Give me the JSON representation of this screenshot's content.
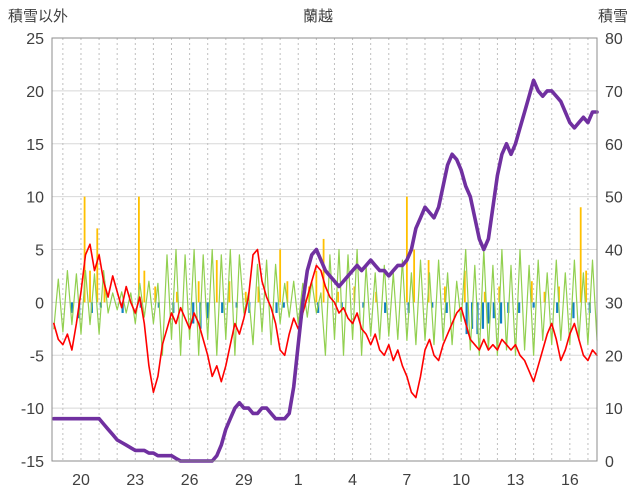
{
  "chart_data": {
    "type": "line",
    "title": "蘭越",
    "left_axis": {
      "label": "積雪以外",
      "min": -15,
      "max": 25,
      "ticks": [
        25,
        20,
        15,
        10,
        5,
        0,
        -5,
        -10,
        -15
      ]
    },
    "right_axis": {
      "label": "積雪",
      "min": 0,
      "max": 80,
      "ticks": [
        80,
        70,
        60,
        50,
        40,
        30,
        20,
        10,
        0
      ]
    },
    "x_axis": {
      "min": 18.4,
      "max": 48.5,
      "day_grid_step": 1,
      "tick_positions": [
        20,
        23,
        26,
        29,
        32,
        35,
        38,
        41,
        44,
        47
      ],
      "tick_labels": [
        "20",
        "23",
        "26",
        "29",
        "1",
        "4",
        "7",
        "10",
        "13",
        "16"
      ]
    },
    "grid": {
      "h_color": "#d8d8d8",
      "v_color": "#bfbfbf",
      "border_color": "#8c8c8c"
    },
    "series": [
      {
        "name": "precip-orange-bars",
        "type": "bar",
        "axis": "left",
        "color": "#FFC000",
        "stroke_width": 1.8,
        "points": [
          [
            20.2,
            10
          ],
          [
            20.5,
            3
          ],
          [
            20.9,
            7
          ],
          [
            21.3,
            2
          ],
          [
            23.2,
            10
          ],
          [
            23.5,
            3
          ],
          [
            24.1,
            1.5
          ],
          [
            25.3,
            1
          ],
          [
            26.5,
            2
          ],
          [
            27.5,
            4
          ],
          [
            28.2,
            2
          ],
          [
            29.1,
            1
          ],
          [
            29.8,
            1.5
          ],
          [
            31.0,
            5
          ],
          [
            31.4,
            2
          ],
          [
            32.6,
            1.5
          ],
          [
            33.0,
            3
          ],
          [
            33.4,
            6
          ],
          [
            34.2,
            1
          ],
          [
            35.1,
            1.5
          ],
          [
            36.3,
            1
          ],
          [
            38.0,
            10
          ],
          [
            38.4,
            5
          ],
          [
            39.2,
            4
          ],
          [
            40.1,
            1.5
          ],
          [
            41.2,
            3
          ],
          [
            42.3,
            1
          ],
          [
            43.1,
            1.5
          ],
          [
            44.9,
            2
          ],
          [
            45.6,
            1
          ],
          [
            46.4,
            1.5
          ],
          [
            47.6,
            9
          ],
          [
            47.9,
            3
          ]
        ]
      },
      {
        "name": "blue-bars",
        "type": "bar",
        "axis": "left",
        "color": "#0f7fc0",
        "stroke_width": 2.2,
        "points": [
          [
            19.5,
            -1
          ],
          [
            19.9,
            -1.5
          ],
          [
            20.6,
            -1
          ],
          [
            21.1,
            -0.5
          ],
          [
            22.3,
            -1
          ],
          [
            23.3,
            -0.5
          ],
          [
            24.3,
            -0.5
          ],
          [
            25.1,
            -1
          ],
          [
            26.2,
            -2
          ],
          [
            26.6,
            -2.5
          ],
          [
            27.0,
            -1.5
          ],
          [
            27.8,
            -1
          ],
          [
            28.6,
            -0.5
          ],
          [
            29.3,
            -1
          ],
          [
            30.8,
            -1
          ],
          [
            31.2,
            -0.5
          ],
          [
            32.2,
            -1.5
          ],
          [
            33.1,
            -1
          ],
          [
            34.4,
            -0.5
          ],
          [
            35.6,
            -0.5
          ],
          [
            36.8,
            -1
          ],
          [
            38.1,
            -1
          ],
          [
            39.4,
            -0.5
          ],
          [
            40.2,
            -1
          ],
          [
            41.3,
            -3
          ],
          [
            41.6,
            -2.5
          ],
          [
            41.9,
            -3
          ],
          [
            42.2,
            -2.5
          ],
          [
            42.5,
            -2
          ],
          [
            42.8,
            -1.5
          ],
          [
            43.2,
            -2
          ],
          [
            43.6,
            -1
          ],
          [
            44.2,
            -1
          ],
          [
            45.0,
            -0.5
          ],
          [
            46.3,
            -1
          ],
          [
            47.2,
            -1.5
          ],
          [
            48.1,
            -1
          ]
        ]
      },
      {
        "name": "green-line",
        "type": "line",
        "axis": "left",
        "color": "#92D050",
        "stroke_width": 1.2,
        "x_start": 18.5,
        "x_step": 0.25,
        "values": [
          -2.5,
          2.2,
          -2.8,
          3,
          -2.1,
          2.7,
          -3,
          3,
          -2.1,
          2.7,
          -3,
          3,
          -1,
          0.9,
          -0.7,
          1,
          -1,
          0.9,
          -2,
          1.8,
          -1.4,
          2,
          -2,
          1.8,
          -5,
          4.5,
          -3.5,
          5,
          -5,
          4.5,
          -3.5,
          5,
          -5,
          4.5,
          -3.5,
          5,
          -5,
          4.5,
          -3.5,
          5,
          -5,
          4.5,
          -1,
          0.9,
          -4,
          3.6,
          -2.8,
          4,
          -4,
          3.6,
          -2,
          1.8,
          -1.4,
          2,
          -2,
          1.8,
          -1.4,
          2,
          -1,
          0.9,
          -5,
          4.5,
          -3.5,
          5,
          -5,
          4.5,
          -3.5,
          5,
          -5,
          3.5,
          -3.2,
          2.8,
          -3.5,
          3.5,
          -3.2,
          2.8,
          -3.5,
          4,
          -3.6,
          2.8,
          -4,
          4,
          -3.6,
          2.8,
          -4,
          4,
          -3.6,
          2.8,
          -4,
          2,
          -1.8,
          5,
          -4.5,
          3.5,
          -5,
          5,
          -4.5,
          3.5,
          -5,
          5,
          -4.5,
          3.5,
          -5,
          5,
          -4.5,
          3.5,
          -5,
          4,
          -3.6,
          2.8,
          -4,
          4,
          -3.6,
          2.8,
          -4,
          4,
          -3.6,
          2.8,
          -4,
          4,
          -3.6
        ]
      },
      {
        "name": "red-temperature-line",
        "type": "line",
        "axis": "left",
        "color": "#FF0000",
        "stroke_width": 1.6,
        "x_start": 18.5,
        "x_step": 0.25,
        "values": [
          -2,
          -3.5,
          -4,
          -3,
          -4.5,
          -2,
          1,
          4.5,
          5.5,
          3,
          4.5,
          2,
          0.5,
          2.5,
          1,
          -0.5,
          1.5,
          0,
          -1,
          0.5,
          -2,
          -6,
          -8.5,
          -7,
          -4,
          -2.5,
          -1,
          -2,
          -0.5,
          -1.5,
          -2.5,
          -1,
          -2,
          -3.5,
          -5,
          -7,
          -6,
          -7.5,
          -6,
          -4,
          -2,
          -3,
          -1.5,
          0.5,
          4.5,
          5,
          2,
          0.5,
          -0.5,
          -2,
          -4.5,
          -5,
          -3,
          -1.5,
          -2.5,
          -1,
          0.5,
          2,
          3.5,
          3,
          1.5,
          0.5,
          0,
          -1,
          -0.5,
          -1.5,
          -2,
          -1,
          -2.5,
          -3,
          -4,
          -3,
          -4.5,
          -5,
          -4,
          -5.5,
          -4.5,
          -6,
          -7,
          -8.5,
          -9,
          -7,
          -4.5,
          -3.5,
          -5,
          -5.5,
          -4,
          -3,
          -2,
          -1,
          -0.5,
          -2,
          -3.5,
          -4,
          -4.5,
          -3.5,
          -4.5,
          -4,
          -4.5,
          -3.5,
          -4,
          -4.5,
          -4,
          -5,
          -5.5,
          -6.5,
          -7.5,
          -6,
          -4.5,
          -3,
          -2,
          -3.5,
          -5.5,
          -4.5,
          -3,
          -2,
          -3.5,
          -5,
          -5.5,
          -4.5,
          -5
        ]
      },
      {
        "name": "purple-snow-depth-line",
        "type": "line",
        "axis": "right",
        "color": "#7030A0",
        "stroke_width": 3.6,
        "x_start": 18.5,
        "x_step": 0.25,
        "values": [
          8,
          8,
          8,
          8,
          8,
          8,
          8,
          8,
          8,
          8,
          8,
          7,
          6,
          5,
          4,
          3.5,
          3,
          2.5,
          2,
          2,
          2,
          1.5,
          1.5,
          1,
          1,
          1,
          1,
          0.5,
          0,
          0,
          0,
          0,
          0,
          0,
          0,
          0,
          1,
          3,
          6,
          8,
          10,
          11,
          10,
          10,
          9,
          9,
          10,
          10,
          9,
          8,
          8,
          8,
          9,
          14,
          22,
          30,
          36,
          39,
          40,
          38,
          36,
          35,
          34,
          33,
          34,
          35,
          36,
          37,
          36,
          37,
          38,
          37,
          36,
          36,
          35,
          36,
          37,
          37,
          38,
          40,
          44,
          46,
          48,
          47,
          46,
          48,
          52,
          56,
          58,
          57,
          55,
          52,
          50,
          46,
          42,
          40,
          42,
          48,
          54,
          58,
          60,
          58,
          60,
          63,
          66,
          69,
          72,
          70,
          69,
          70,
          70,
          69,
          68,
          66,
          64,
          63,
          64,
          65,
          64,
          66,
          66
        ]
      }
    ]
  }
}
